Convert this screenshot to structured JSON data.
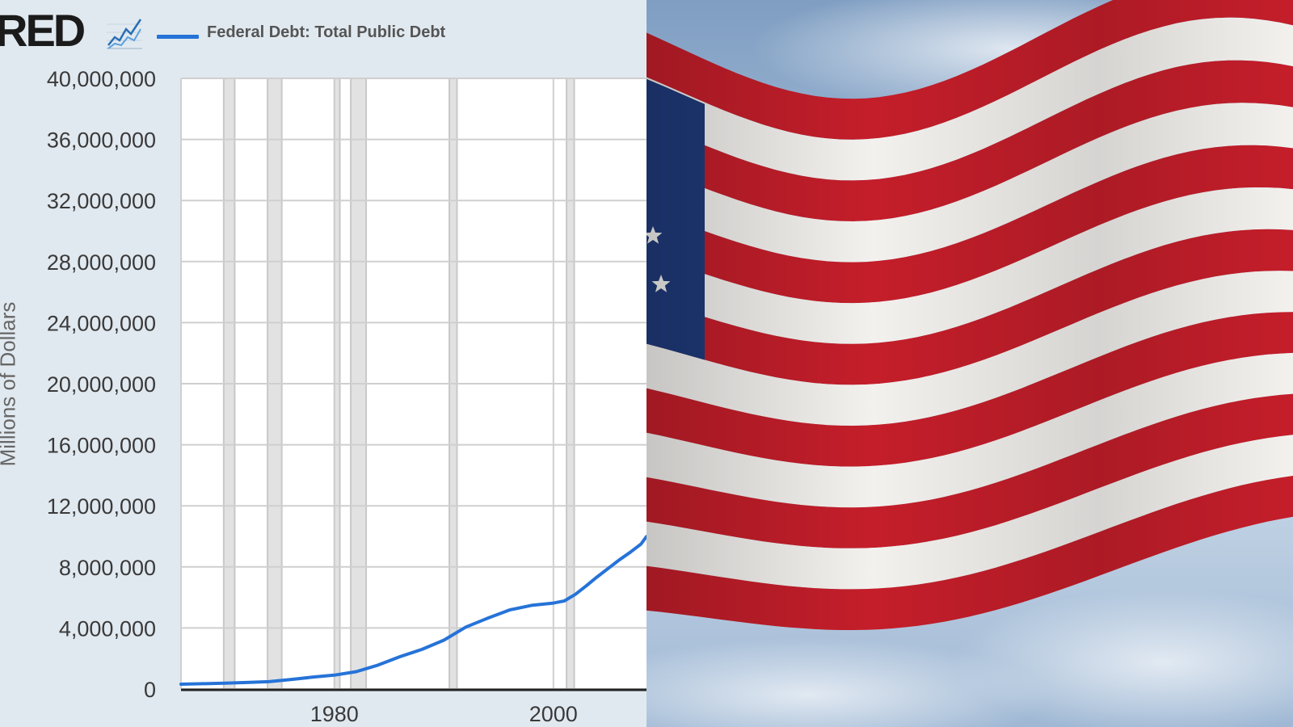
{
  "header": {
    "logo_text": "RED",
    "logo_icon": "line-graph-icon",
    "legend_label": "Federal Debt: Total Public Debt",
    "legend_color": "#2673d8"
  },
  "chart_data": {
    "type": "line",
    "xlabel": "",
    "ylabel": "Millions of Dollars",
    "ylim": [
      0,
      40000000
    ],
    "xlim": [
      1966,
      2008.5
    ],
    "yticks": [
      "0",
      "4,000,000",
      "8,000,000",
      "12,000,000",
      "16,000,000",
      "20,000,000",
      "24,000,000",
      "28,000,000",
      "32,000,000",
      "36,000,000",
      "40,000,000"
    ],
    "ytick_values": [
      0,
      4000000,
      8000000,
      12000000,
      16000000,
      20000000,
      24000000,
      28000000,
      32000000,
      36000000,
      40000000
    ],
    "xticks": [
      "1980",
      "2000"
    ],
    "xtick_values": [
      1980,
      2000
    ],
    "grid": true,
    "recession_shading": [
      [
        1969.9,
        1970.9
      ],
      [
        1973.9,
        1975.2
      ],
      [
        1980.0,
        1980.5
      ],
      [
        1981.5,
        1982.9
      ],
      [
        1990.5,
        1991.2
      ],
      [
        2001.2,
        2001.9
      ]
    ],
    "series": [
      {
        "name": "Federal Debt: Total Public Debt",
        "color": "#2673d8",
        "x": [
          1966,
          1968,
          1970,
          1972,
          1974,
          1976,
          1978,
          1980,
          1982,
          1984,
          1986,
          1988,
          1990,
          1992,
          1994,
          1996,
          1998,
          2000,
          2001,
          2002,
          2003,
          2004,
          2005,
          2006,
          2007,
          2008,
          2008.5
        ],
        "y": [
          320000,
          350000,
          380000,
          430000,
          480000,
          620000,
          780000,
          910000,
          1140000,
          1570000,
          2120000,
          2600000,
          3200000,
          4060000,
          4640000,
          5180000,
          5480000,
          5630000,
          5770000,
          6200000,
          6760000,
          7350000,
          7900000,
          8450000,
          8950000,
          9500000,
          9990000
        ]
      }
    ]
  },
  "photo": {
    "colors": {
      "red": "#c41e2a",
      "white": "#f3f1ee",
      "blue": "#1f3a7a",
      "sky": "#a8bfd9"
    }
  }
}
